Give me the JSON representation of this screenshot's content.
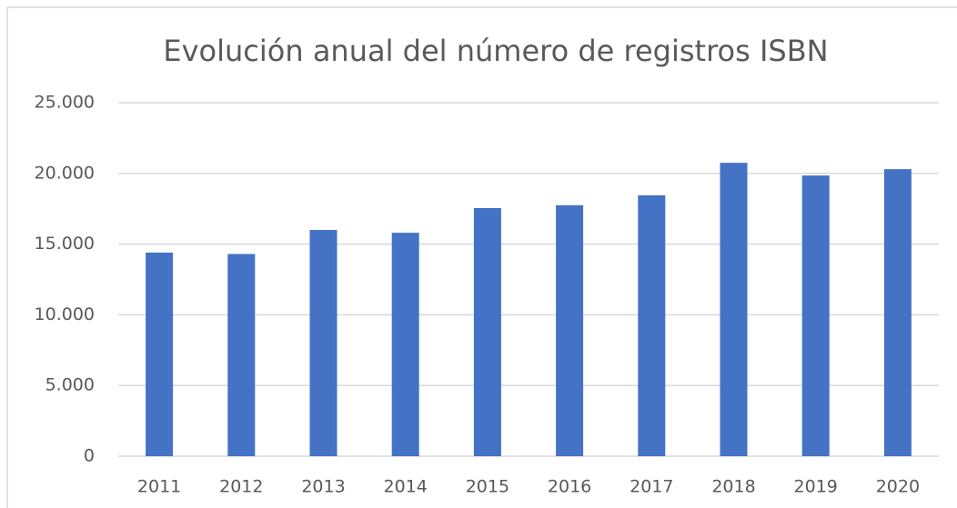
{
  "chart_data": {
    "type": "bar",
    "title": "Evolución anual del número de registros ISBN",
    "categories": [
      "2011",
      "2012",
      "2013",
      "2014",
      "2015",
      "2016",
      "2017",
      "2018",
      "2019",
      "2020"
    ],
    "values": [
      14400,
      14300,
      16000,
      15800,
      17550,
      17750,
      18450,
      20750,
      19850,
      20300
    ],
    "color": "#4472c4",
    "ylim": [
      0,
      25000
    ],
    "yticks": [
      0,
      {
        "value": 5000,
        "label": "5.000"
      },
      {
        "value": 10000,
        "label": "10.000"
      },
      {
        "value": 15000,
        "label": "15.000"
      },
      {
        "value": 20000,
        "label": "20.000"
      },
      {
        "value": 25000,
        "label": "25.000"
      }
    ],
    "grid": true
  }
}
